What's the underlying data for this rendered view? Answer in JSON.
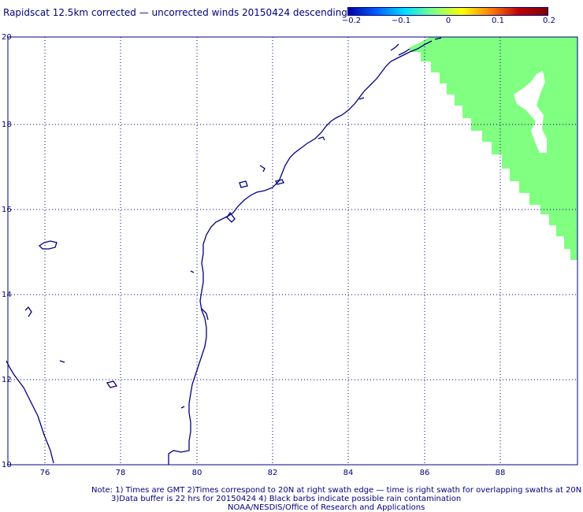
{
  "title": "Rapidscat 12.5km corrected — uncorrected winds 20150424 descending",
  "colorbar": {
    "ticks": [
      "−0.2",
      "−0.1",
      "0",
      "0.1",
      "0.2"
    ],
    "colors": [
      "#0000a0",
      "#0060ff",
      "#00e0ff",
      "#80ff80",
      "#ffff00",
      "#ff8000",
      "#c00000",
      "#800000"
    ]
  },
  "map": {
    "x_ticks": [
      "76",
      "78",
      "80",
      "82",
      "84",
      "86",
      "88"
    ],
    "y_ticks": [
      "20",
      "18",
      "16",
      "14",
      "12",
      "10"
    ],
    "lon_range": [
      75,
      89.7
    ],
    "lat_range": [
      10,
      20
    ],
    "coast_color": "#000080",
    "swath_color": "#80ff80",
    "grid": "dotted"
  },
  "notes": {
    "line1": "Note: 1) Times are GMT 2)Times correspond to 20N at right swath edge — time is right swath for overlapping swaths at 20N",
    "line2": "3)Data buffer is 22 hrs for 20150424 4) Black barbs indicate possible rain contamination",
    "line3": "NOAA/NESDIS/Office of Research and Applications"
  }
}
